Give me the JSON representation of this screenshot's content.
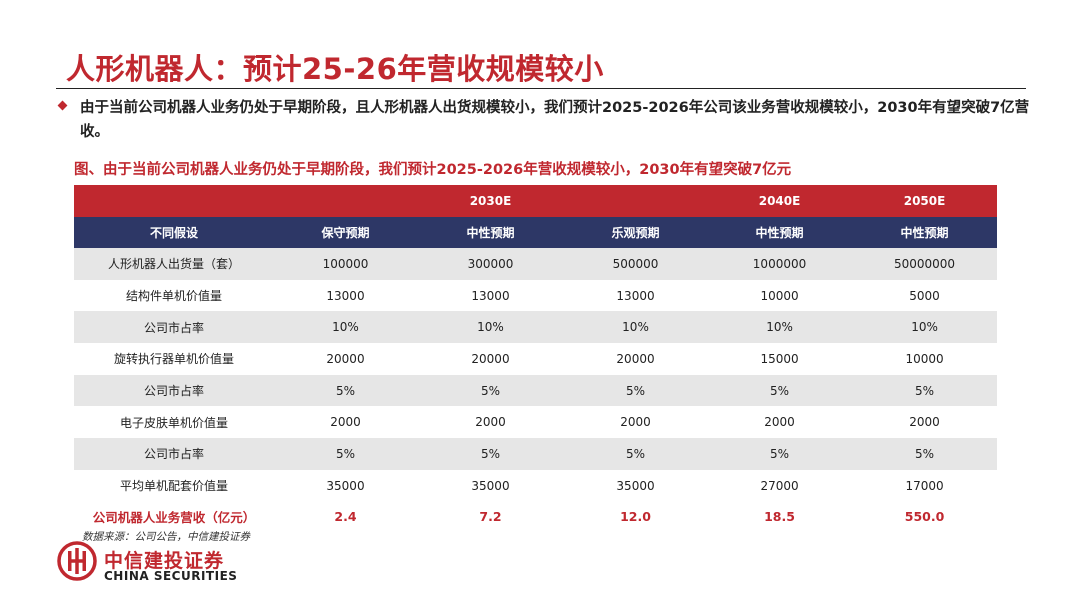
{
  "slide": {
    "title": "人形机器人：预计25-26年营收规模较小",
    "bullet": "由于当前公司机器人业务仍处于早期阶段，且人形机器人出货规模较小，我们预计2025-2026年公司该业务营收规模较小，2030年有望突破7亿营收。",
    "caption": "图、由于当前公司机器人业务仍处于早期阶段，我们预计2025-2026年营收规模较小，2030年有望突破7亿元"
  },
  "table": {
    "year_headers": [
      "",
      "2030E",
      "2040E",
      "2050E"
    ],
    "column_headers": [
      "不同假设",
      "保守预期",
      "中性预期",
      "乐观预期",
      "中性预期",
      "中性预期"
    ],
    "rows": [
      [
        "人形机器人出货量（套）",
        "100000",
        "300000",
        "500000",
        "1000000",
        "50000000"
      ],
      [
        "结构件单机价值量",
        "13000",
        "13000",
        "13000",
        "10000",
        "5000"
      ],
      [
        "公司市占率",
        "10%",
        "10%",
        "10%",
        "10%",
        "10%"
      ],
      [
        "旋转执行器单机价值量",
        "20000",
        "20000",
        "20000",
        "15000",
        "10000"
      ],
      [
        "公司市占率",
        "5%",
        "5%",
        "5%",
        "5%",
        "5%"
      ],
      [
        "电子皮肤单机价值量",
        "2000",
        "2000",
        "2000",
        "2000",
        "2000"
      ],
      [
        "公司市占率",
        "5%",
        "5%",
        "5%",
        "5%",
        "5%"
      ],
      [
        "平均单机配套价值量",
        "35000",
        "35000",
        "35000",
        "27000",
        "17000"
      ]
    ],
    "revenue_row": [
      "公司机器人业务营收（亿元）",
      "2.4",
      "7.2",
      "12.0",
      "18.5",
      "550.0"
    ]
  },
  "footer": {
    "source": "数据来源：公司公告，中信建投证券",
    "logo_cn": "中信建投证券",
    "logo_en": "CHINA SECURITIES"
  },
  "colors": {
    "accent_red": "#c0282f",
    "header_navy": "#2d3766",
    "row_gray": "#e6e6e6"
  }
}
